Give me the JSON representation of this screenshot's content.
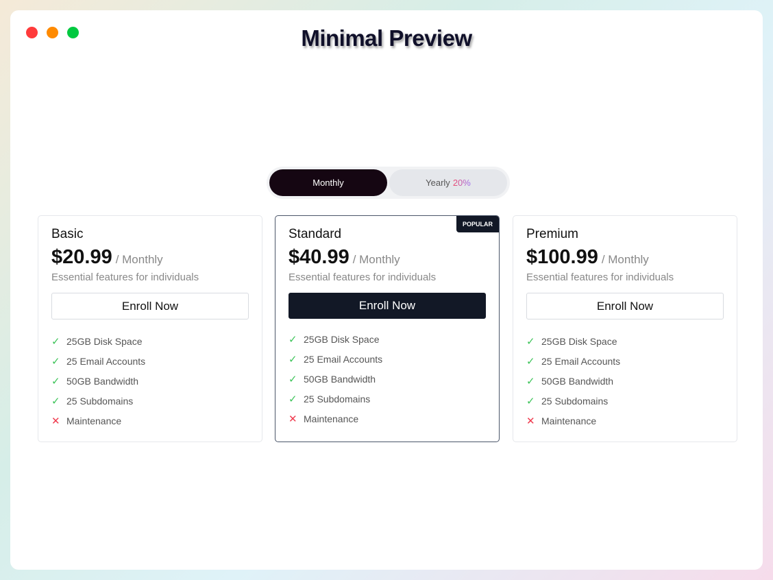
{
  "window": {
    "title": "Minimal Preview",
    "controls": {
      "close": "#ff3b3b",
      "minimize": "#ff8a00",
      "maximize": "#00c940"
    }
  },
  "toggle": {
    "monthly": "Monthly",
    "yearly": "Yearly",
    "discount": "20%",
    "selected": "Monthly"
  },
  "plans": [
    {
      "name": "Basic",
      "price": "$20.99",
      "period": "/ Monthly",
      "description": "Essential features for individuals",
      "button": "Enroll Now",
      "popular": false,
      "features": [
        {
          "label": "25GB Disk Space",
          "included": true,
          "icon": "check-icon"
        },
        {
          "label": "25 Email Accounts",
          "included": true,
          "icon": "check-icon"
        },
        {
          "label": "50GB Bandwidth",
          "included": true,
          "icon": "check-icon"
        },
        {
          "label": "25 Subdomains",
          "included": true,
          "icon": "check-icon"
        },
        {
          "label": "Maintenance",
          "included": false,
          "icon": "x-icon"
        }
      ]
    },
    {
      "name": "Standard",
      "price": "$40.99",
      "period": "/ Monthly",
      "description": "Essential features for individuals",
      "button": "Enroll Now",
      "popular": true,
      "badge": "POPULAR",
      "features": [
        {
          "label": "25GB Disk Space",
          "included": true,
          "icon": "check-icon"
        },
        {
          "label": "25 Email Accounts",
          "included": true,
          "icon": "check-icon"
        },
        {
          "label": "50GB Bandwidth",
          "included": true,
          "icon": "check-icon"
        },
        {
          "label": "25 Subdomains",
          "included": true,
          "icon": "check-icon"
        },
        {
          "label": "Maintenance",
          "included": false,
          "icon": "x-icon"
        }
      ]
    },
    {
      "name": "Premium",
      "price": "$100.99",
      "period": "/ Monthly",
      "description": "Essential features for individuals",
      "button": "Enroll Now",
      "popular": false,
      "features": [
        {
          "label": "25GB Disk Space",
          "included": true,
          "icon": "check-icon"
        },
        {
          "label": "25 Email Accounts",
          "included": true,
          "icon": "check-icon"
        },
        {
          "label": "50GB Bandwidth",
          "included": true,
          "icon": "check-icon"
        },
        {
          "label": "25 Subdomains",
          "included": true,
          "icon": "check-icon"
        },
        {
          "label": "Maintenance",
          "included": false,
          "icon": "x-icon"
        }
      ]
    }
  ]
}
